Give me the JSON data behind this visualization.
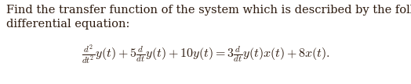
{
  "background_color": "#ffffff",
  "text_color": "#2c1a0e",
  "line1": "Find the transfer function of the system which is described by the following",
  "line2": "differential equation:",
  "equation": "$\\frac{d^2}{dt^2}y(t) + 5\\frac{d}{dt}y(t) + 10y(t) = 3\\frac{d}{dt}y(t)x(t) + 8x(t).$",
  "text_fontsize": 10.5,
  "eq_fontsize": 11.5,
  "figwidth": 5.24,
  "figheight": 1.08,
  "dpi": 100
}
